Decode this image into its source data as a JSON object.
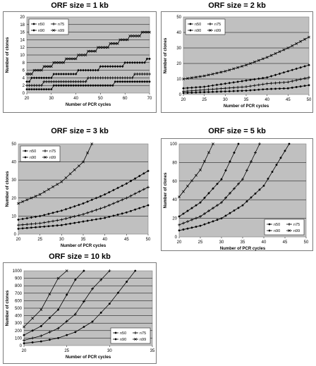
{
  "chart_data": [
    {
      "type": "line",
      "title": "ORF size = 1 kb",
      "xlabel": "Number of PCR cycles",
      "ylabel": "Number of clones",
      "xlim": [
        20,
        70
      ],
      "ylim": [
        0,
        20
      ],
      "xticks": [
        20,
        30,
        40,
        50,
        60,
        70
      ],
      "yticks": [
        0,
        2,
        4,
        6,
        8,
        10,
        12,
        14,
        16,
        18,
        20
      ],
      "legend_position": "top-left",
      "series": [
        {
          "name": "n50",
          "x": [
            20,
            30,
            31,
            55,
            56,
            70
          ],
          "y": [
            1,
            1,
            2,
            2,
            3,
            3
          ],
          "step": true
        },
        {
          "name": "n75",
          "x": [
            20,
            26,
            27,
            44,
            45,
            63,
            64,
            70
          ],
          "y": [
            2,
            2,
            3,
            3,
            4,
            4,
            5,
            5
          ],
          "step": true
        },
        {
          "name": "n90",
          "x": [
            20,
            21,
            22,
            30,
            31,
            40,
            41,
            49,
            50,
            59,
            60,
            68,
            69,
            70
          ],
          "y": [
            3,
            3,
            4,
            4,
            5,
            5,
            6,
            6,
            7,
            7,
            8,
            8,
            9,
            9
          ],
          "step": true
        },
        {
          "name": "n99",
          "x": [
            20,
            22,
            23,
            26,
            27,
            30,
            31,
            35,
            36,
            40,
            41,
            44,
            45,
            48,
            49,
            53,
            54,
            57,
            58,
            61,
            62,
            66,
            67,
            70
          ],
          "y": [
            5,
            5,
            6,
            6,
            7,
            7,
            8,
            8,
            9,
            9,
            10,
            10,
            11,
            11,
            12,
            12,
            13,
            13,
            14,
            14,
            15,
            15,
            16,
            16
          ],
          "step": true
        }
      ]
    },
    {
      "type": "line",
      "title": "ORF size = 2 kb",
      "xlabel": "Number of PCR cycles",
      "ylabel": "Number of clones",
      "xlim": [
        20,
        50
      ],
      "ylim": [
        0,
        50
      ],
      "xticks": [
        20,
        25,
        30,
        35,
        40,
        45,
        50
      ],
      "yticks": [
        0,
        10,
        20,
        30,
        40,
        50
      ],
      "legend_position": "top-left",
      "series": [
        {
          "name": "n50",
          "x": [
            20,
            25,
            30,
            35,
            40,
            45,
            50
          ],
          "y": [
            1,
            1.5,
            2,
            2.5,
            3.5,
            4,
            6
          ]
        },
        {
          "name": "n75",
          "x": [
            20,
            25,
            30,
            35,
            40,
            45,
            50
          ],
          "y": [
            2,
            3,
            4,
            5,
            7,
            8,
            11
          ]
        },
        {
          "name": "n90",
          "x": [
            20,
            25,
            30,
            35,
            40,
            45,
            50
          ],
          "y": [
            4,
            5,
            7,
            9,
            11,
            15,
            19
          ]
        },
        {
          "name": "n99",
          "x": [
            20,
            25,
            30,
            35,
            40,
            45,
            50
          ],
          "y": [
            10,
            12,
            15,
            19,
            24,
            30,
            37
          ]
        }
      ]
    },
    {
      "type": "line",
      "title": "ORF size = 3 kb",
      "xlabel": "Number of PCR cycles",
      "ylabel": "Number of clones",
      "xlim": [
        20,
        50
      ],
      "ylim": [
        0,
        50
      ],
      "xticks": [
        20,
        25,
        30,
        35,
        40,
        45,
        50
      ],
      "yticks": [
        0,
        10,
        20,
        30,
        40,
        50
      ],
      "legend_position": "top-left",
      "series": [
        {
          "name": "n50",
          "x": [
            20,
            25,
            30,
            35,
            40,
            45,
            50
          ],
          "y": [
            3,
            4,
            5,
            7,
            9,
            12,
            16
          ]
        },
        {
          "name": "n75",
          "x": [
            20,
            25,
            30,
            35,
            40,
            45,
            50
          ],
          "y": [
            5,
            6,
            8,
            11,
            15,
            20,
            26
          ]
        },
        {
          "name": "n90",
          "x": [
            20,
            25,
            30,
            35,
            40,
            45,
            50
          ],
          "y": [
            8,
            10,
            13,
            17,
            22,
            28,
            35
          ]
        },
        {
          "name": "n99",
          "x": [
            20,
            25,
            30,
            35,
            37
          ],
          "y": [
            17,
            22,
            29,
            40,
            50
          ]
        }
      ]
    },
    {
      "type": "line",
      "title": "ORF size = 5 kb",
      "xlabel": "Number of PCR cycles",
      "ylabel": "Number of clones",
      "xlim": [
        20,
        50
      ],
      "ylim": [
        0,
        100
      ],
      "xticks": [
        20,
        25,
        30,
        35,
        40,
        45,
        50
      ],
      "yticks": [
        0,
        20,
        40,
        60,
        80,
        100
      ],
      "legend_position": "bottom-right",
      "series": [
        {
          "name": "n50",
          "x": [
            20,
            25,
            30,
            35,
            40,
            46
          ],
          "y": [
            7,
            12,
            20,
            34,
            55,
            100
          ]
        },
        {
          "name": "n75",
          "x": [
            20,
            25,
            30,
            35,
            39
          ],
          "y": [
            13,
            22,
            37,
            62,
            100
          ]
        },
        {
          "name": "n90",
          "x": [
            20,
            25,
            30,
            34
          ],
          "y": [
            22,
            37,
            62,
            100
          ]
        },
        {
          "name": "n99",
          "x": [
            20,
            25,
            28
          ],
          "y": [
            43,
            72,
            100
          ]
        }
      ]
    },
    {
      "type": "line",
      "title": "ORF size = 10 kb",
      "xlabel": "Number of PCR cycles",
      "ylabel": "Number of clones",
      "xlim": [
        20,
        35
      ],
      "ylim": [
        0,
        1000
      ],
      "xticks": [
        20,
        25,
        30,
        35
      ],
      "yticks": [
        0,
        100,
        200,
        300,
        400,
        500,
        600,
        700,
        800,
        900,
        1000
      ],
      "legend_position": "bottom-right",
      "series": [
        {
          "name": "n50",
          "x": [
            20,
            22,
            24,
            26,
            28,
            30,
            33
          ],
          "y": [
            30,
            55,
            100,
            180,
            320,
            560,
            1000
          ]
        },
        {
          "name": "n75",
          "x": [
            20,
            22,
            24,
            26,
            28,
            30
          ],
          "y": [
            70,
            130,
            230,
            420,
            760,
            1000
          ]
        },
        {
          "name": "n90",
          "x": [
            20,
            22,
            24,
            26,
            27
          ],
          "y": [
            140,
            260,
            480,
            880,
            1000
          ]
        },
        {
          "name": "n99",
          "x": [
            20,
            22,
            24,
            25
          ],
          "y": [
            250,
            480,
            900,
            1000
          ]
        }
      ]
    }
  ]
}
